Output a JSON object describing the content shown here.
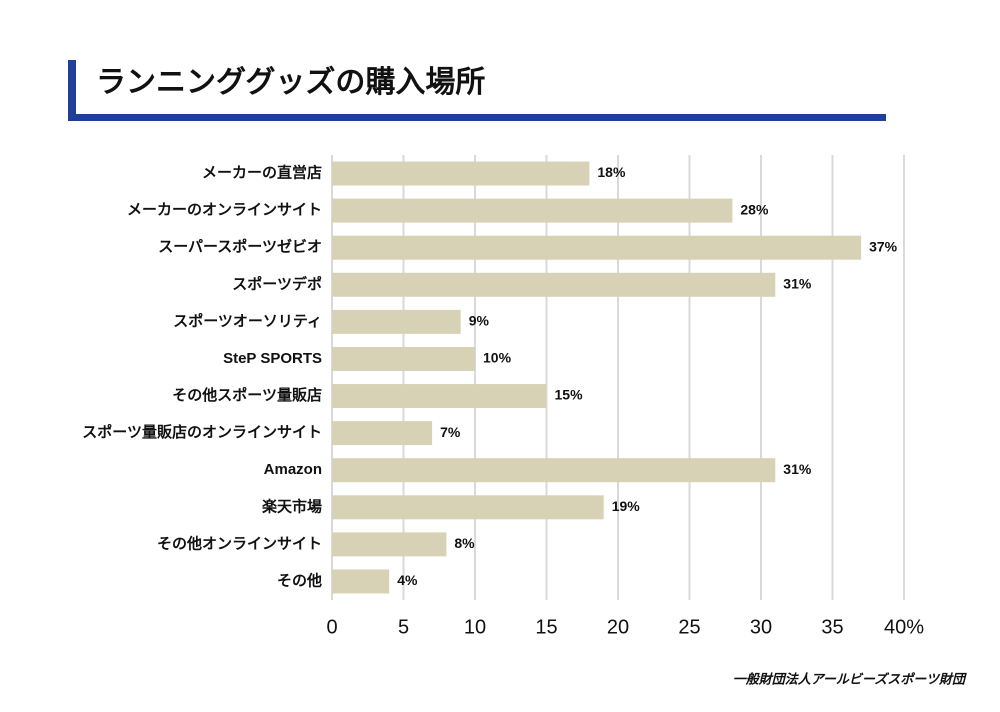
{
  "chart_data": {
    "type": "bar",
    "orientation": "horizontal",
    "title": "ランニンググッズの購入場所",
    "source": "一般財団法人アールビーズスポーツ財団",
    "categories": [
      "メーカーの直営店",
      "メーカーのオンラインサイト",
      "スーパースポーツゼビオ",
      "スポーツデポ",
      "スポーツオーソリティ",
      "SteP SPORTS",
      "その他スポーツ量販店",
      "スポーツ量販店のオンラインサイト",
      "Amazon",
      "楽天市場",
      "その他オンラインサイト",
      "その他"
    ],
    "values": [
      18,
      28,
      37,
      31,
      9,
      10,
      15,
      7,
      31,
      19,
      8,
      4
    ],
    "value_labels": [
      "18%",
      "28%",
      "37%",
      "31%",
      "9%",
      "10%",
      "15%",
      "7%",
      "31%",
      "19%",
      "8%",
      "4%"
    ],
    "color": "#d7d2b6",
    "xlim": [
      0,
      40
    ],
    "xticks": [
      0,
      5,
      10,
      15,
      20,
      25,
      30,
      35,
      {
        "value": 40,
        "label": "40%"
      }
    ],
    "grid": true
  }
}
